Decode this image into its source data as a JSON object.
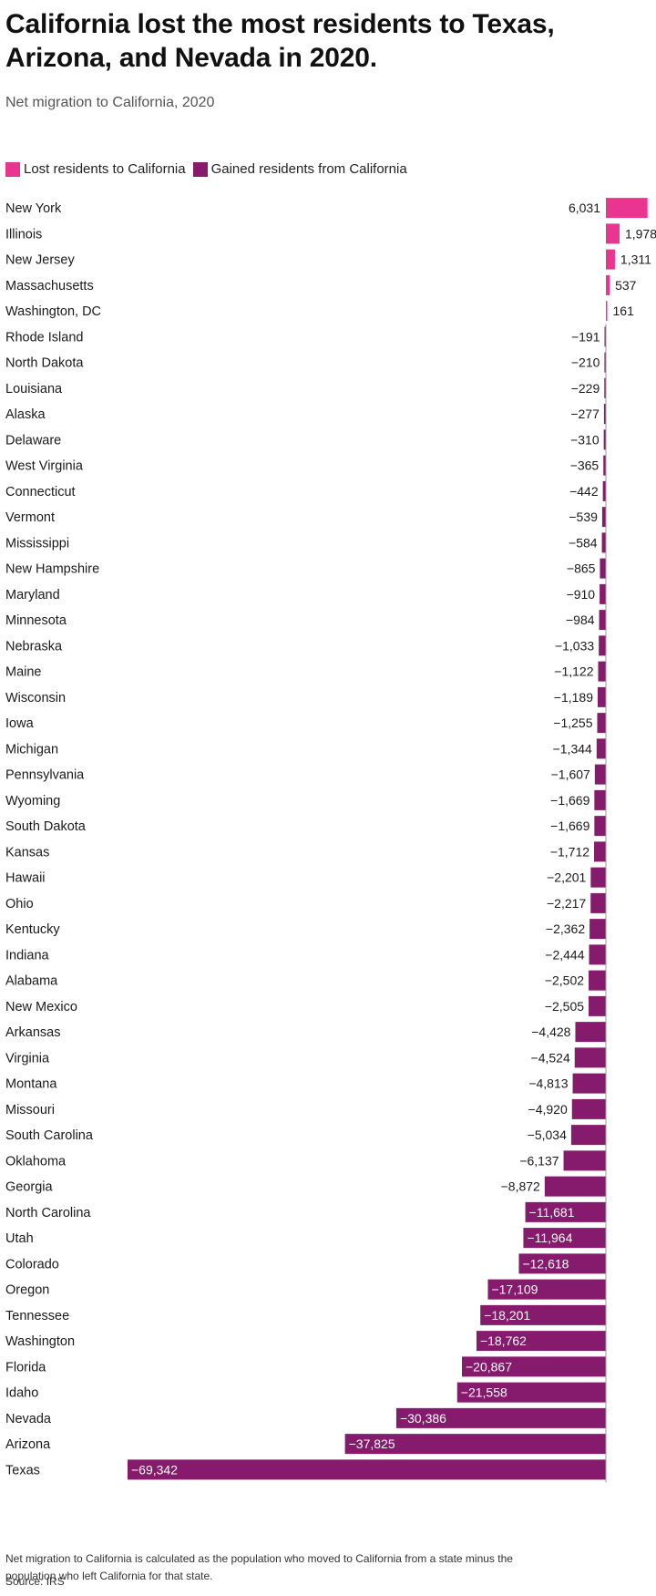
{
  "title": "California lost the most residents to Texas, Arizona, and Nevada in 2020.",
  "subtitle": "Net migration to California, 2020",
  "footnote_line1": "Net migration to California is calculated as the population who moved to California from a state minus the",
  "footnote_line2": "population who left California for that state.",
  "source": "Source: IRS",
  "colors": {
    "positive": "#e8358f",
    "negative": "#861a6c",
    "axis": "#999999"
  },
  "chart_data": {
    "type": "bar",
    "orientation": "horizontal",
    "legend": [
      {
        "label": "Lost residents to California",
        "color": "#e8358f"
      },
      {
        "label": "Gained residents from California",
        "color": "#861a6c"
      }
    ],
    "categories": [
      "New York",
      "Illinois",
      "New Jersey",
      "Massachusetts",
      "Washington, DC",
      "Rhode Island",
      "North Dakota",
      "Louisiana",
      "Alaska",
      "Delaware",
      "West Virginia",
      "Connecticut",
      "Vermont",
      "Mississippi",
      "New Hampshire",
      "Maryland",
      "Minnesota",
      "Nebraska",
      "Maine",
      "Wisconsin",
      "Iowa",
      "Michigan",
      "Pennsylvania",
      "Wyoming",
      "South Dakota",
      "Kansas",
      "Hawaii",
      "Ohio",
      "Kentucky",
      "Indiana",
      "Alabama",
      "New Mexico",
      "Arkansas",
      "Virginia",
      "Montana",
      "Missouri",
      "South Carolina",
      "Oklahoma",
      "Georgia",
      "North Carolina",
      "Utah",
      "Colorado",
      "Oregon",
      "Tennessee",
      "Washington",
      "Florida",
      "Idaho",
      "Nevada",
      "Arizona",
      "Texas"
    ],
    "values": [
      6031,
      1978,
      1311,
      537,
      161,
      -191,
      -210,
      -229,
      -277,
      -310,
      -365,
      -442,
      -539,
      -584,
      -865,
      -910,
      -984,
      -1033,
      -1122,
      -1189,
      -1255,
      -1344,
      -1607,
      -1669,
      -1669,
      -1712,
      -2201,
      -2217,
      -2362,
      -2444,
      -2502,
      -2505,
      -4428,
      -4524,
      -4813,
      -4920,
      -5034,
      -6137,
      -8872,
      -11681,
      -11964,
      -12618,
      -17109,
      -18201,
      -18762,
      -20867,
      -21558,
      -30386,
      -37825,
      -69342
    ],
    "labels": [
      "6,031",
      "1,978",
      "1,311",
      "537",
      "161",
      "−191",
      "−210",
      "−229",
      "−277",
      "−310",
      "−365",
      "−442",
      "−539",
      "−584",
      "−865",
      "−910",
      "−984",
      "−1,033",
      "−1,122",
      "−1,189",
      "−1,255",
      "−1,344",
      "−1,607",
      "−1,669",
      "−1,669",
      "−1,712",
      "−2,201",
      "−2,217",
      "−2,362",
      "−2,444",
      "−2,502",
      "−2,505",
      "−4,428",
      "−4,524",
      "−4,813",
      "−4,920",
      "−5,034",
      "−6,137",
      "−8,872",
      "−11,681",
      "−11,964",
      "−12,618",
      "−17,109",
      "−18,201",
      "−18,762",
      "−20,867",
      "−21,558",
      "−30,386",
      "−37,825",
      "−69,342"
    ],
    "xlim": [
      -69342,
      6031
    ],
    "grid": false
  }
}
